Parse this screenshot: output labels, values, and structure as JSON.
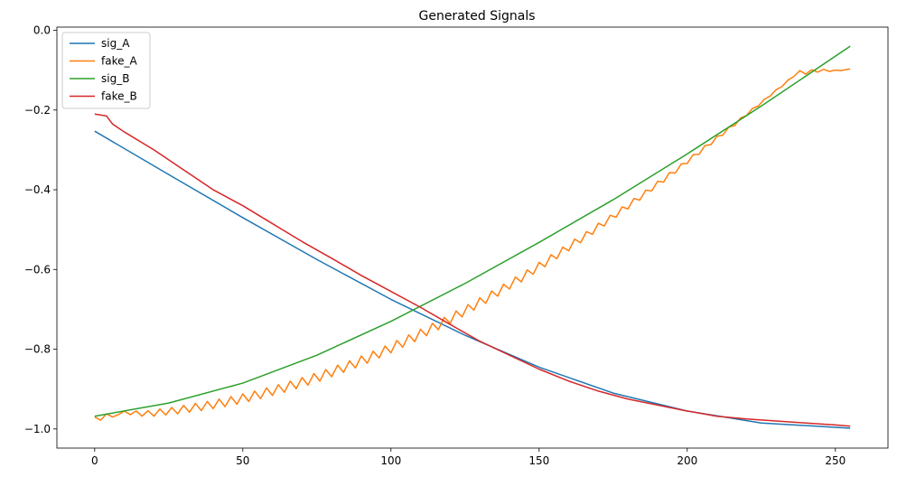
{
  "chart_data": {
    "type": "line",
    "title": "Generated Signals",
    "xlabel": "",
    "ylabel": "",
    "xlim": [
      -12.75,
      267.75
    ],
    "ylim": [
      -1.048,
      0.008
    ],
    "xticks": [
      0,
      50,
      100,
      150,
      200,
      250
    ],
    "xtick_labels": [
      "0",
      "50",
      "100",
      "150",
      "200",
      "250"
    ],
    "yticks": [
      -1.0,
      -0.8,
      -0.6,
      -0.4,
      -0.2,
      0.0
    ],
    "ytick_labels": [
      "−1.0",
      "−0.8",
      "−0.6",
      "−0.4",
      "−0.2",
      "0.0"
    ],
    "grid": false,
    "legend_position": "upper-left",
    "series": [
      {
        "name": "sig_A",
        "color": "#1f77b4",
        "x": [
          0,
          25,
          50,
          75,
          100,
          125,
          150,
          175,
          200,
          225,
          255
        ],
        "y": [
          -0.253,
          -0.362,
          -0.47,
          -0.575,
          -0.675,
          -0.765,
          -0.845,
          -0.91,
          -0.955,
          -0.985,
          -0.998
        ]
      },
      {
        "name": "fake_A",
        "color": "#ff7f0e",
        "x": [
          0,
          2,
          4,
          6,
          8,
          10,
          12,
          14,
          16,
          18,
          20,
          22,
          24,
          26,
          28,
          30,
          32,
          34,
          36,
          38,
          40,
          42,
          44,
          46,
          48,
          50,
          52,
          54,
          56,
          58,
          60,
          62,
          64,
          66,
          68,
          70,
          72,
          74,
          76,
          78,
          80,
          82,
          84,
          86,
          88,
          90,
          92,
          94,
          96,
          98,
          100,
          102,
          104,
          106,
          108,
          110,
          112,
          114,
          116,
          118,
          120,
          122,
          124,
          126,
          128,
          130,
          132,
          134,
          136,
          138,
          140,
          142,
          144,
          146,
          148,
          150,
          152,
          154,
          156,
          158,
          160,
          162,
          164,
          166,
          168,
          170,
          172,
          174,
          176,
          178,
          180,
          182,
          184,
          186,
          188,
          190,
          192,
          194,
          196,
          198,
          200,
          202,
          204,
          206,
          208,
          210,
          212,
          214,
          216,
          218,
          220,
          222,
          224,
          226,
          228,
          230,
          232,
          234,
          236,
          238,
          240,
          242,
          244,
          246,
          248,
          250,
          252,
          254,
          255
        ],
        "y": [
          -0.97,
          -0.978,
          -0.962,
          -0.97,
          -0.964,
          -0.955,
          -0.964,
          -0.955,
          -0.968,
          -0.954,
          -0.968,
          -0.95,
          -0.965,
          -0.946,
          -0.962,
          -0.941,
          -0.958,
          -0.936,
          -0.954,
          -0.931,
          -0.949,
          -0.925,
          -0.944,
          -0.919,
          -0.938,
          -0.912,
          -0.931,
          -0.905,
          -0.924,
          -0.897,
          -0.916,
          -0.889,
          -0.908,
          -0.88,
          -0.899,
          -0.871,
          -0.89,
          -0.861,
          -0.88,
          -0.851,
          -0.869,
          -0.84,
          -0.858,
          -0.829,
          -0.847,
          -0.817,
          -0.835,
          -0.805,
          -0.822,
          -0.792,
          -0.809,
          -0.778,
          -0.795,
          -0.764,
          -0.781,
          -0.75,
          -0.766,
          -0.735,
          -0.751,
          -0.72,
          -0.735,
          -0.704,
          -0.719,
          -0.688,
          -0.702,
          -0.671,
          -0.685,
          -0.654,
          -0.667,
          -0.637,
          -0.649,
          -0.619,
          -0.631,
          -0.601,
          -0.612,
          -0.582,
          -0.593,
          -0.563,
          -0.573,
          -0.544,
          -0.553,
          -0.524,
          -0.533,
          -0.505,
          -0.512,
          -0.484,
          -0.491,
          -0.464,
          -0.469,
          -0.443,
          -0.448,
          -0.422,
          -0.426,
          -0.401,
          -0.403,
          -0.379,
          -0.381,
          -0.357,
          -0.358,
          -0.335,
          -0.334,
          -0.312,
          -0.311,
          -0.289,
          -0.287,
          -0.266,
          -0.263,
          -0.243,
          -0.239,
          -0.22,
          -0.214,
          -0.196,
          -0.19,
          -0.173,
          -0.165,
          -0.149,
          -0.141,
          -0.125,
          -0.116,
          -0.101,
          -0.11,
          -0.099,
          -0.105,
          -0.098,
          -0.103,
          -0.1,
          -0.101,
          -0.098,
          -0.097
        ]
      },
      {
        "name": "sig_B",
        "color": "#2ca02c",
        "x": [
          0,
          25,
          50,
          75,
          100,
          125,
          150,
          175,
          200,
          225,
          255
        ],
        "y": [
          -0.968,
          -0.935,
          -0.885,
          -0.815,
          -0.73,
          -0.635,
          -0.532,
          -0.425,
          -0.31,
          -0.19,
          -0.04
        ]
      },
      {
        "name": "fake_B",
        "color": "#d62728",
        "x": [
          0,
          4,
          6,
          10,
          20,
          30,
          40,
          50,
          60,
          70,
          80,
          90,
          100,
          110,
          120,
          130,
          140,
          150,
          160,
          170,
          180,
          190,
          200,
          210,
          220,
          230,
          240,
          250,
          255
        ],
        "y": [
          -0.21,
          -0.215,
          -0.235,
          -0.255,
          -0.3,
          -0.35,
          -0.4,
          -0.44,
          -0.485,
          -0.53,
          -0.572,
          -0.615,
          -0.655,
          -0.695,
          -0.738,
          -0.78,
          -0.815,
          -0.85,
          -0.88,
          -0.905,
          -0.925,
          -0.94,
          -0.955,
          -0.968,
          -0.975,
          -0.98,
          -0.985,
          -0.99,
          -0.993
        ]
      }
    ]
  }
}
